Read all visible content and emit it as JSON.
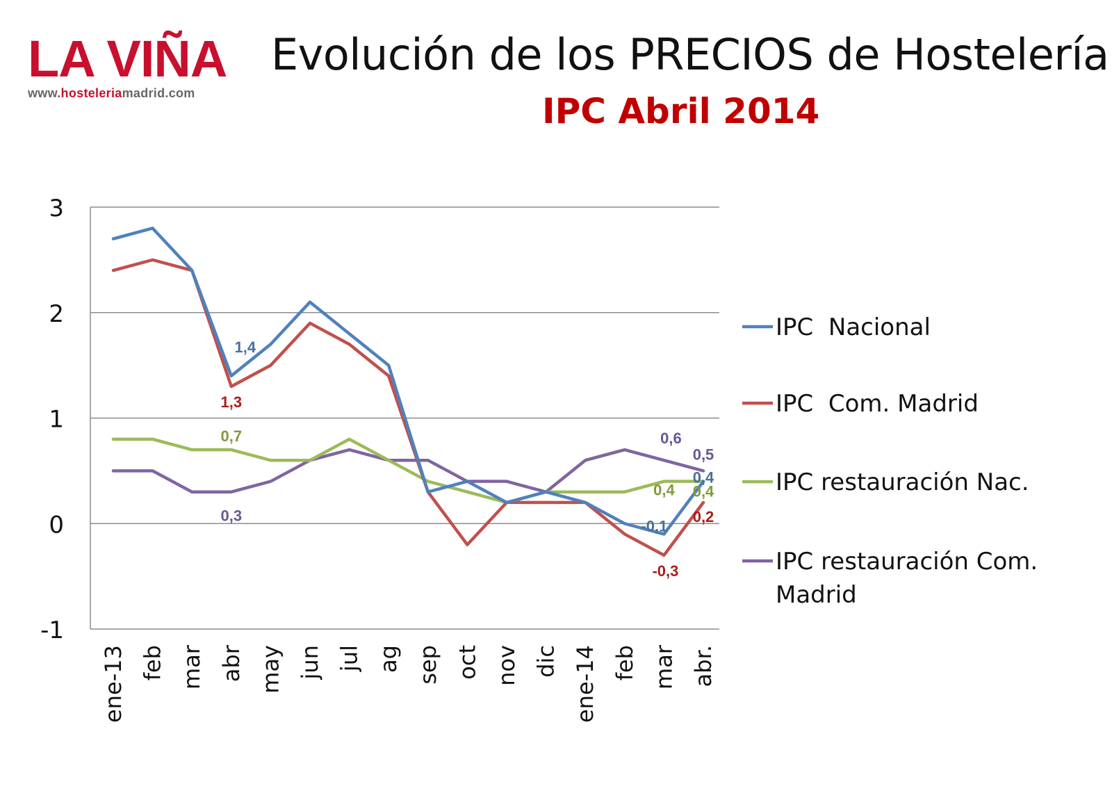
{
  "header": {
    "logo_text": "LA VIÑA",
    "logo_url_prefix": "www.",
    "logo_url_highlight": "hosteleria",
    "logo_url_suffix": "madrid.com",
    "title": "Evolución de los PRECIOS de Hostelería",
    "subtitle": "IPC Abril 2014"
  },
  "colors": {
    "brand_red": "#c8102e",
    "subtitle_red": "#c00000"
  },
  "chart_data": {
    "type": "line",
    "categories": [
      "ene-13",
      "feb",
      "mar",
      "abr",
      "may",
      "jun",
      "jul",
      "ag",
      "sep",
      "oct",
      "nov",
      "dic",
      "ene-14",
      "feb",
      "mar",
      "abr."
    ],
    "ylim": [
      -1,
      3
    ],
    "yticks": [
      "-1",
      "0",
      "1",
      "2",
      "3"
    ],
    "grid": true,
    "legend_position": "right",
    "series": [
      {
        "name": "IPC  Nacional",
        "color": "#4f81bd",
        "values": [
          2.7,
          2.8,
          2.4,
          1.4,
          1.7,
          2.1,
          1.8,
          1.5,
          0.3,
          0.4,
          0.2,
          0.3,
          0.2,
          0.0,
          -0.1,
          0.4
        ]
      },
      {
        "name": "IPC  Com. Madrid",
        "color": "#c0504d",
        "values": [
          2.4,
          2.5,
          2.4,
          1.3,
          1.5,
          1.9,
          1.7,
          1.4,
          0.3,
          -0.2,
          0.2,
          0.2,
          0.2,
          -0.1,
          -0.3,
          0.2
        ]
      },
      {
        "name": "IPC restauración Nac.",
        "color": "#9bbb59",
        "values": [
          0.8,
          0.8,
          0.7,
          0.7,
          0.6,
          0.6,
          0.8,
          0.6,
          0.4,
          0.3,
          0.2,
          0.3,
          0.3,
          0.3,
          0.4,
          0.4
        ]
      },
      {
        "name": "IPC restauración Com. Madrid",
        "color": "#8064a2",
        "values": [
          0.5,
          0.5,
          0.3,
          0.3,
          0.4,
          0.6,
          0.7,
          0.6,
          0.6,
          0.4,
          0.4,
          0.3,
          0.6,
          0.7,
          0.6,
          0.5
        ]
      }
    ],
    "annotations": [
      {
        "series": 0,
        "index": 3,
        "text": "1,4"
      },
      {
        "series": 1,
        "index": 3,
        "text": "1,3"
      },
      {
        "series": 2,
        "index": 3,
        "text": "0,7"
      },
      {
        "series": 3,
        "index": 3,
        "text": "0,3"
      },
      {
        "series": 3,
        "index": 14,
        "text": "0,6"
      },
      {
        "series": 2,
        "index": 14,
        "text": "0,4"
      },
      {
        "series": 0,
        "index": 14,
        "text": "-0,1"
      },
      {
        "series": 1,
        "index": 14,
        "text": "-0,3"
      },
      {
        "series": 3,
        "index": 15,
        "text": "0,5"
      },
      {
        "series": 0,
        "index": 15,
        "text": "0,4"
      },
      {
        "series": 2,
        "index": 15,
        "text": "0,4"
      },
      {
        "series": 1,
        "index": 15,
        "text": "0,2"
      }
    ]
  }
}
